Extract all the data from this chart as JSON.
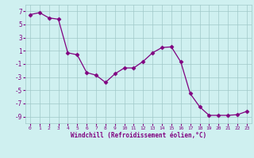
{
  "x": [
    0,
    1,
    2,
    3,
    4,
    5,
    6,
    7,
    8,
    9,
    10,
    11,
    12,
    13,
    14,
    15,
    16,
    17,
    18,
    19,
    20,
    21,
    22,
    23
  ],
  "y": [
    6.5,
    6.8,
    6.0,
    5.8,
    0.7,
    0.4,
    -2.3,
    -2.7,
    -3.8,
    -2.5,
    -1.6,
    -1.6,
    -0.6,
    0.7,
    1.5,
    1.6,
    -0.7,
    -5.5,
    -7.5,
    -8.8,
    -8.8,
    -8.8,
    -8.7,
    -8.2
  ],
  "color": "#800080",
  "marker": "D",
  "markersize": 2.5,
  "linewidth": 0.9,
  "xlabel": "Windchill (Refroidissement éolien,°C)",
  "ylim": [
    -10,
    8
  ],
  "xlim": [
    -0.5,
    23.5
  ],
  "yticks": [
    7,
    5,
    3,
    1,
    -1,
    -3,
    -5,
    -7,
    -9
  ],
  "xticks": [
    0,
    1,
    2,
    3,
    4,
    5,
    6,
    7,
    8,
    9,
    10,
    11,
    12,
    13,
    14,
    15,
    16,
    17,
    18,
    19,
    20,
    21,
    22,
    23
  ],
  "bg_color": "#cff0f0",
  "grid_color": "#a0c8c8",
  "tick_color": "#800080",
  "label_color": "#800080"
}
